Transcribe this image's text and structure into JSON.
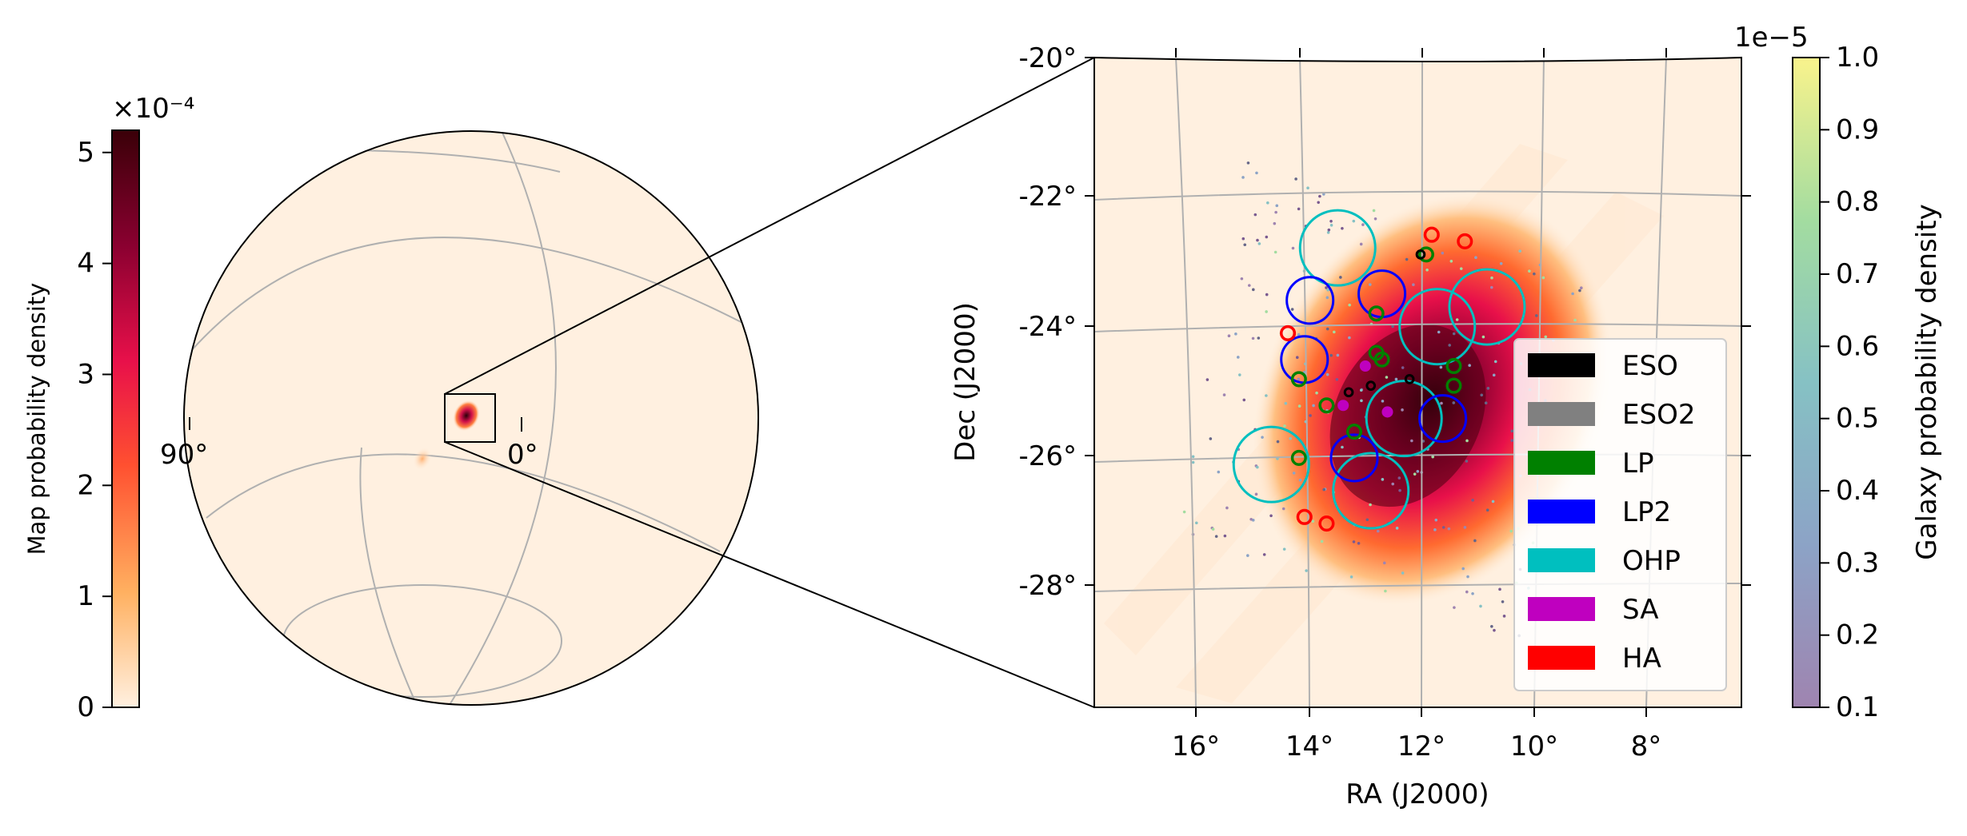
{
  "chart_data": [
    {
      "type": "heatmap",
      "projection": "globe",
      "colorbar": {
        "label": "Map probability density",
        "exponent_label": "×10⁻⁴",
        "ticks": [
          "0",
          "1",
          "2",
          "3",
          "4",
          "5"
        ],
        "range": [
          0,
          5.2
        ],
        "colormap": "cylon"
      },
      "meridian_labels": [
        "90°",
        "0°"
      ],
      "grid": true
    },
    {
      "type": "heatmap",
      "title": "",
      "xlabel": "RA (J2000)",
      "ylabel": "Dec (J2000)",
      "x_ticks": [
        "16°",
        "14°",
        "12°",
        "10°",
        "8°"
      ],
      "y_ticks": [
        "-20°",
        "-22°",
        "-24°",
        "-26°",
        "-28°"
      ],
      "xlim": [
        17.7,
        6.0
      ],
      "ylim": [
        -29.9,
        -20.0
      ],
      "grid": true,
      "legend_position": "lower-right",
      "legend": [
        {
          "name": "ESO",
          "color": "#000000"
        },
        {
          "name": "ESO2",
          "color": "#808080"
        },
        {
          "name": "LP",
          "color": "#008000"
        },
        {
          "name": "LP2",
          "color": "#0000ff"
        },
        {
          "name": "OHP",
          "color": "#00bfbf"
        },
        {
          "name": "SA",
          "color": "#bf00bf"
        },
        {
          "name": "HA",
          "color": "#ff0000"
        }
      ],
      "colorbar": {
        "label": "Galaxy probability density",
        "exponent_label": "1e−5",
        "ticks": [
          "0.1",
          "0.2",
          "0.3",
          "0.4",
          "0.5",
          "0.6",
          "0.7",
          "0.8",
          "0.9",
          "1.0"
        ],
        "range": [
          0.1,
          1.0
        ],
        "colormap": "viridis"
      },
      "fields": {
        "OHP": [
          [
            13.3,
            -22.9
          ],
          [
            11.5,
            -24.1
          ],
          [
            10.6,
            -23.8
          ],
          [
            12.1,
            -25.5
          ],
          [
            14.5,
            -26.2
          ],
          [
            12.7,
            -26.6
          ]
        ],
        "LP2": [
          [
            13.8,
            -23.7
          ],
          [
            12.5,
            -23.6
          ],
          [
            13.9,
            -24.6
          ],
          [
            11.4,
            -25.5
          ],
          [
            13.0,
            -26.1
          ]
        ],
        "LP": [
          [
            12.6,
            -23.9
          ],
          [
            12.6,
            -24.5
          ],
          [
            12.5,
            -24.6
          ],
          [
            11.7,
            -23.0
          ],
          [
            11.2,
            -24.7
          ],
          [
            14.0,
            -24.9
          ],
          [
            13.5,
            -25.3
          ],
          [
            13.0,
            -25.7
          ],
          [
            14.0,
            -26.1
          ],
          [
            11.2,
            -25.0
          ]
        ],
        "HA": [
          [
            11.6,
            -22.7
          ],
          [
            11.0,
            -22.8
          ],
          [
            14.2,
            -24.2
          ],
          [
            13.9,
            -27.0
          ],
          [
            13.5,
            -27.1
          ]
        ],
        "ESO": [
          [
            12.0,
            -24.9
          ],
          [
            13.1,
            -25.1
          ],
          [
            11.8,
            -23.0
          ],
          [
            12.7,
            -25.0
          ]
        ],
        "SA": [
          [
            12.8,
            -24.7
          ],
          [
            13.2,
            -25.3
          ],
          [
            12.4,
            -25.4
          ]
        ]
      }
    }
  ]
}
